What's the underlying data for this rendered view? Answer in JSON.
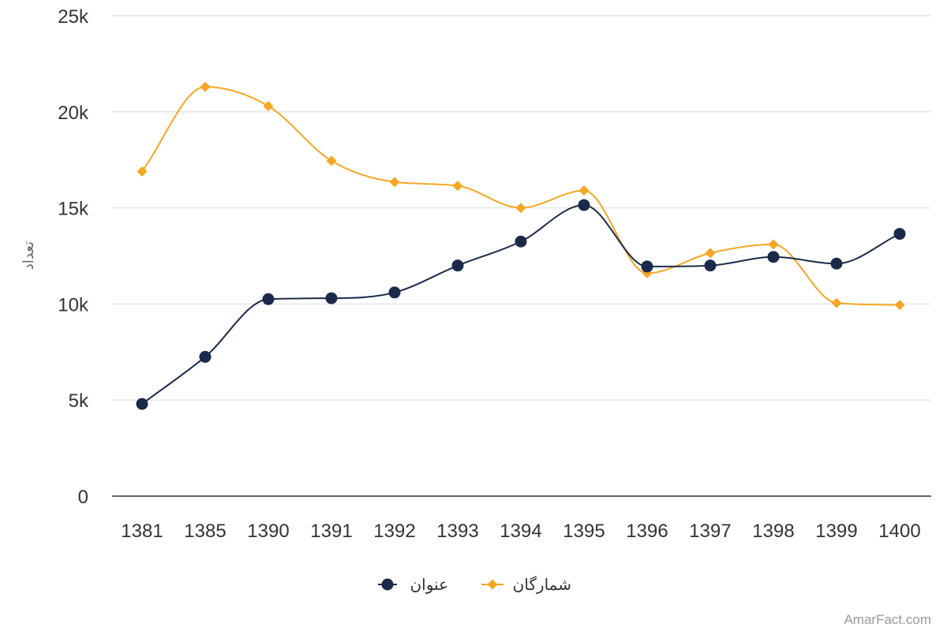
{
  "chart_data": {
    "type": "line",
    "categories": [
      "1381",
      "1385",
      "1390",
      "1391",
      "1392",
      "1393",
      "1394",
      "1395",
      "1396",
      "1397",
      "1398",
      "1399",
      "1400"
    ],
    "series": [
      {
        "name": "عنوان",
        "color": "#1b2a4a",
        "marker": "circle",
        "values": [
          4800,
          7250,
          10250,
          10300,
          10600,
          12000,
          13250,
          15150,
          11950,
          12000,
          12450,
          12100,
          13650
        ]
      },
      {
        "name": "شمارگان",
        "color": "#f5a623",
        "marker": "diamond",
        "values": [
          16900,
          21300,
          20300,
          17450,
          16350,
          16150,
          15000,
          15900,
          11600,
          12650,
          13100,
          10050,
          9950
        ]
      }
    ],
    "ylim": [
      0,
      25000
    ],
    "yticks": [
      0,
      5000,
      10000,
      15000,
      20000,
      25000
    ],
    "ytick_labels": [
      "0",
      "5k",
      "10k",
      "15k",
      "20k",
      "25k"
    ],
    "ylabel": "تعداد",
    "xlabel": "",
    "title": "",
    "grid": true,
    "legend_position": "bottom-center"
  },
  "credit": "AmarFact.com"
}
